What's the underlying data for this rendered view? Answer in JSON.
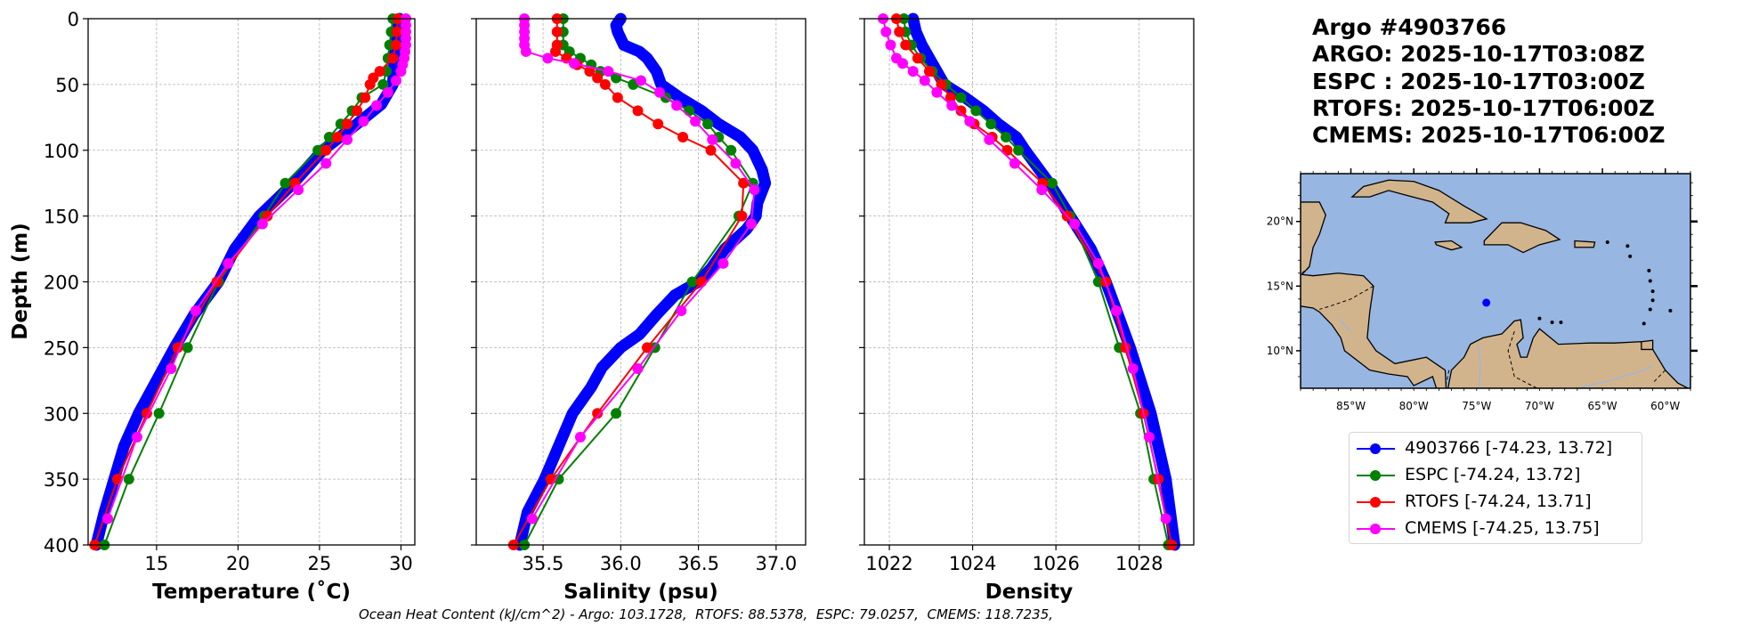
{
  "title": {
    "lines": [
      "Argo #4903766",
      "ARGO: 2025-10-17T03:08Z",
      "ESPC : 2025-10-17T03:00Z",
      "RTOFS: 2025-10-17T06:00Z",
      "CMEMS: 2025-10-17T06:00Z"
    ]
  },
  "legend": {
    "entries": [
      {
        "label": "4903766 [-74.23, 13.72]",
        "color": "#0000ff"
      },
      {
        "label": "ESPC [-74.24, 13.72]",
        "color": "#008000"
      },
      {
        "label": "RTOFS [-74.24, 13.71]",
        "color": "#ff0000"
      },
      {
        "label": "CMEMS [-74.25, 13.75]",
        "color": "#ff00ff"
      }
    ]
  },
  "footer": {
    "ohc_text": "Ocean Heat Content (kJ/cm^2) - Argo: 103.1728,  RTOFS: 88.5378,  ESPC: 79.0257,  CMEMS: 118.7235,"
  },
  "chart_data": [
    {
      "type": "line",
      "id": "temperature",
      "xlabel": "Temperature (˚C)",
      "ylabel": "Depth (m)",
      "xlim": [
        10.8,
        30.85
      ],
      "ylim": [
        400,
        0
      ],
      "xticks": [
        15,
        20,
        25,
        30
      ],
      "xtick_labels": [
        "15",
        "20",
        "25",
        "30"
      ],
      "yticks": [
        0,
        50,
        100,
        150,
        200,
        250,
        300,
        350,
        400
      ],
      "ytick_labels": [
        "0",
        "50",
        "100",
        "150",
        "200",
        "250",
        "300",
        "350",
        "400"
      ],
      "grid": true,
      "series": [
        {
          "name": "4903766",
          "color": "#0000ff",
          "dense": true,
          "depth": [
            0,
            10,
            20,
            30,
            40,
            50,
            65,
            80,
            100,
            125,
            150,
            175,
            200,
            225,
            250,
            275,
            300,
            325,
            350,
            375,
            400
          ],
          "values": [
            29.9,
            29.8,
            29.7,
            29.6,
            29.55,
            29.5,
            28.8,
            27.3,
            25.2,
            23.4,
            21.3,
            19.8,
            18.8,
            17.3,
            16.1,
            15.0,
            13.9,
            13.0,
            12.4,
            11.8,
            11.3
          ]
        },
        {
          "name": "ESPC",
          "color": "#008000",
          "depth": [
            0,
            10,
            20,
            30,
            40,
            50,
            60,
            70,
            80,
            90,
            100,
            125,
            150,
            200,
            250,
            300,
            350,
            400
          ],
          "values": [
            29.5,
            29.4,
            29.3,
            29.2,
            29.1,
            28.9,
            27.6,
            27.0,
            26.3,
            25.6,
            24.9,
            22.9,
            21.6,
            18.8,
            16.9,
            15.15,
            13.3,
            11.8
          ]
        },
        {
          "name": "RTOFS",
          "color": "#ff0000",
          "depth": [
            0,
            10,
            20,
            30,
            40,
            45,
            50,
            60,
            70,
            80,
            90,
            100,
            125,
            150,
            200,
            250,
            300,
            350,
            400
          ],
          "values": [
            29.8,
            29.75,
            29.7,
            29.5,
            28.7,
            28.3,
            28.1,
            27.8,
            27.3,
            26.7,
            26.1,
            25.4,
            23.5,
            21.8,
            18.7,
            16.3,
            14.4,
            12.6,
            11.2
          ]
        },
        {
          "name": "CMEMS",
          "color": "#ff00ff",
          "depth": [
            0,
            5,
            10,
            15,
            20,
            25,
            30,
            35,
            40,
            47,
            56,
            66,
            78,
            92,
            110,
            130,
            156,
            186,
            222,
            266,
            318,
            380
          ],
          "values": [
            30.3,
            30.3,
            30.3,
            30.3,
            30.3,
            30.25,
            30.2,
            30.1,
            30.0,
            29.7,
            29.2,
            28.5,
            27.7,
            26.7,
            25.4,
            23.7,
            21.5,
            19.4,
            17.4,
            15.9,
            13.8,
            12.0
          ]
        }
      ]
    },
    {
      "type": "line",
      "id": "salinity",
      "xlabel": "Salinity (psu)",
      "ylabel": "",
      "xlim": [
        35.07,
        37.19
      ],
      "ylim": [
        400,
        0
      ],
      "xticks": [
        35.5,
        36.0,
        36.5,
        37.0
      ],
      "xtick_labels": [
        "35.5",
        "36.0",
        "36.5",
        "37.0"
      ],
      "yticks": [
        0,
        50,
        100,
        150,
        200,
        250,
        300,
        350,
        400
      ],
      "ytick_labels": [],
      "grid": true,
      "series": [
        {
          "name": "4903766",
          "color": "#0000ff",
          "dense": true,
          "depth": [
            0,
            5,
            10,
            20,
            25,
            30,
            40,
            50,
            60,
            70,
            80,
            90,
            100,
            115,
            125,
            140,
            150,
            160,
            175,
            190,
            200,
            210,
            225,
            240,
            250,
            265,
            280,
            300,
            325,
            350,
            375,
            400
          ],
          "values": [
            36.0,
            35.97,
            35.98,
            36.02,
            36.12,
            36.17,
            36.23,
            36.26,
            36.38,
            36.52,
            36.63,
            36.77,
            36.85,
            36.91,
            36.93,
            36.88,
            36.87,
            36.81,
            36.67,
            36.58,
            36.5,
            36.35,
            36.23,
            36.12,
            36.0,
            35.88,
            35.81,
            35.69,
            35.6,
            35.51,
            35.4,
            35.35
          ]
        },
        {
          "name": "ESPC",
          "color": "#008000",
          "depth": [
            0,
            10,
            20,
            25,
            30,
            35,
            40,
            45,
            50,
            60,
            70,
            80,
            90,
            100,
            125,
            150,
            200,
            250,
            300,
            350,
            400
          ],
          "values": [
            35.63,
            35.63,
            35.63,
            35.67,
            35.74,
            35.81,
            35.87,
            35.97,
            36.08,
            36.29,
            36.44,
            36.56,
            36.63,
            36.71,
            36.85,
            36.76,
            36.46,
            36.22,
            35.97,
            35.6,
            35.38
          ]
        },
        {
          "name": "RTOFS",
          "color": "#ff0000",
          "depth": [
            0,
            10,
            20,
            25,
            30,
            35,
            40,
            45,
            50,
            60,
            70,
            80,
            90,
            100,
            125,
            150,
            200,
            250,
            300,
            350,
            400
          ],
          "values": [
            35.59,
            35.59,
            35.59,
            35.58,
            35.65,
            35.72,
            35.8,
            35.85,
            35.9,
            35.98,
            36.11,
            36.24,
            36.4,
            36.58,
            36.79,
            36.78,
            36.52,
            36.17,
            35.85,
            35.55,
            35.31
          ]
        },
        {
          "name": "CMEMS",
          "color": "#ff00ff",
          "depth": [
            0,
            5,
            10,
            15,
            20,
            25,
            30,
            34,
            40,
            47,
            56,
            66,
            78,
            92,
            110,
            130,
            156,
            186,
            222,
            266,
            318,
            380
          ],
          "values": [
            35.38,
            35.38,
            35.38,
            35.38,
            35.38,
            35.39,
            35.53,
            35.7,
            35.92,
            36.13,
            36.25,
            36.36,
            36.48,
            36.59,
            36.74,
            36.86,
            36.84,
            36.66,
            36.39,
            36.11,
            35.74,
            35.43
          ]
        }
      ]
    },
    {
      "type": "line",
      "id": "density",
      "xlabel": "Density",
      "ylabel": "",
      "xlim": [
        1021.4,
        1029.31
      ],
      "ylim": [
        400,
        0
      ],
      "xticks": [
        1022,
        1024,
        1026,
        1028
      ],
      "xtick_labels": [
        "1022",
        "1024",
        "1026",
        "1028"
      ],
      "yticks": [
        0,
        50,
        100,
        150,
        200,
        250,
        300,
        350,
        400
      ],
      "ytick_labels": [],
      "grid": true,
      "series": [
        {
          "name": "4903766",
          "color": "#0000ff",
          "dense": true,
          "depth": [
            0,
            10,
            20,
            30,
            40,
            50,
            60,
            70,
            80,
            90,
            100,
            125,
            150,
            175,
            200,
            250,
            300,
            350,
            400
          ],
          "values": [
            1022.57,
            1022.64,
            1022.78,
            1022.96,
            1023.14,
            1023.32,
            1023.82,
            1024.26,
            1024.62,
            1025.05,
            1025.26,
            1025.84,
            1026.34,
            1026.84,
            1027.2,
            1027.78,
            1028.28,
            1028.64,
            1028.85
          ]
        },
        {
          "name": "ESPC",
          "color": "#008000",
          "depth": [
            0,
            10,
            20,
            30,
            40,
            50,
            60,
            70,
            80,
            90,
            100,
            125,
            150,
            200,
            250,
            300,
            350,
            400
          ],
          "values": [
            1022.35,
            1022.39,
            1022.53,
            1022.75,
            1023.03,
            1023.36,
            1023.72,
            1024.08,
            1024.44,
            1024.8,
            1025.1,
            1025.91,
            1026.34,
            1027.02,
            1027.52,
            1028.03,
            1028.35,
            1028.7
          ]
        },
        {
          "name": "RTOFS",
          "color": "#ff0000",
          "depth": [
            0,
            10,
            20,
            30,
            40,
            50,
            60,
            70,
            80,
            90,
            100,
            125,
            150,
            200,
            250,
            300,
            350,
            400
          ],
          "values": [
            1022.17,
            1022.24,
            1022.39,
            1022.68,
            1022.96,
            1023.25,
            1023.47,
            1023.72,
            1024.04,
            1024.47,
            1024.83,
            1025.68,
            1026.27,
            1027.2,
            1027.67,
            1028.1,
            1028.46,
            1028.78
          ]
        },
        {
          "name": "CMEMS",
          "color": "#ff00ff",
          "depth": [
            0,
            10,
            20,
            30,
            34,
            40,
            47,
            56,
            66,
            78,
            92,
            110,
            130,
            156,
            186,
            222,
            266,
            318,
            380
          ],
          "values": [
            1021.85,
            1021.92,
            1022.03,
            1022.17,
            1022.32,
            1022.57,
            1022.85,
            1023.14,
            1023.5,
            1023.93,
            1024.4,
            1025.01,
            1025.66,
            1026.45,
            1027.02,
            1027.45,
            1027.85,
            1028.24,
            1028.64
          ]
        }
      ]
    },
    {
      "type": "scatter",
      "id": "location-map",
      "lon_range": [
        -89.0,
        -58.0
      ],
      "lat_range": [
        7.1,
        23.7
      ],
      "lon_ticks": [
        -85,
        -80,
        -75,
        -70,
        -65,
        -60
      ],
      "lon_tick_labels": [
        "85°W",
        "80°W",
        "75°W",
        "70°W",
        "65°W",
        "60°W"
      ],
      "lat_ticks": [
        10,
        15,
        20
      ],
      "lat_tick_labels": [
        "10°N",
        "15°N",
        "20°N"
      ],
      "ocean_color": "#97b6e1",
      "land_color": "#d2b48c",
      "points": [
        {
          "name": "4903766",
          "lon": -74.23,
          "lat": 13.72,
          "color": "#0000ff"
        }
      ]
    }
  ]
}
